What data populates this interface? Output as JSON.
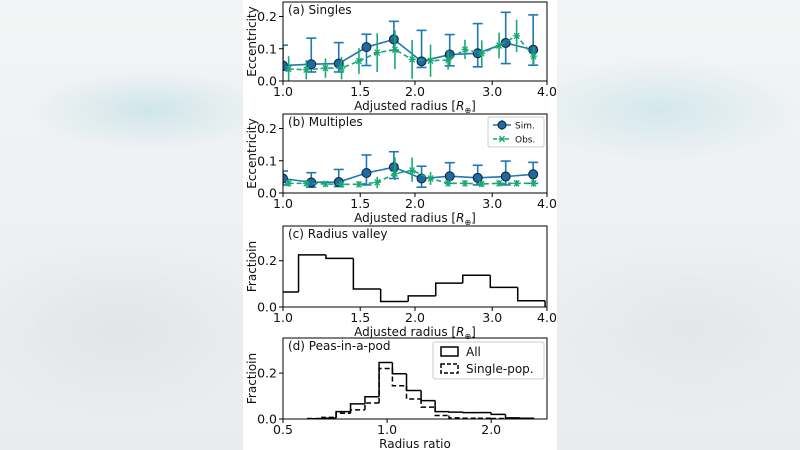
{
  "colors": {
    "sim": "#1f77b4",
    "sim_marker": "#1f6aa0",
    "obs": "#18a874",
    "hist": "#000000"
  },
  "chart_data": [
    {
      "type": "line",
      "title": "(a) Singles",
      "xlabel": {
        "prefix": "Adjusted radius [",
        "symbol": "R",
        "sub": "⊕",
        "suffix": "]"
      },
      "ylabel": "Eccentricity",
      "xscale": "log",
      "xlim": [
        1.0,
        4.0
      ],
      "ylim": [
        0,
        0.245
      ],
      "xticks": [
        1.0,
        1.5,
        2.0,
        3.0,
        4.0
      ],
      "xtick_labels": [
        "1.0",
        "1.5",
        "2.0",
        "3.0",
        "4.0"
      ],
      "yticks": [
        0.0,
        0.1,
        0.2
      ],
      "ytick_labels": [
        "0.0",
        "0.1",
        "0.2"
      ],
      "grid": false,
      "series": [
        {
          "key": "sim",
          "style": "solid-circle-errorbar",
          "x": [
            1.0,
            1.16,
            1.34,
            1.55,
            1.79,
            2.07,
            2.4,
            2.78,
            3.22,
            3.72
          ],
          "y": [
            0.048,
            0.052,
            0.054,
            0.105,
            0.129,
            0.061,
            0.082,
            0.086,
            0.118,
            0.097
          ],
          "y_low": [
            0.033,
            0.028,
            0.028,
            0.048,
            0.095,
            0.042,
            0.047,
            0.044,
            0.054,
            0.049
          ],
          "y_high": [
            0.111,
            0.133,
            0.119,
            0.145,
            0.185,
            0.157,
            0.144,
            0.178,
            0.213,
            0.205
          ]
        },
        {
          "key": "obs",
          "style": "dashed-star-errorbar",
          "x": [
            1.03,
            1.13,
            1.25,
            1.36,
            1.49,
            1.64,
            1.8,
            1.97,
            2.17,
            2.38,
            2.6,
            2.84,
            3.11,
            3.41,
            3.73
          ],
          "y": [
            0.037,
            0.035,
            0.04,
            0.04,
            0.062,
            0.088,
            0.097,
            0.067,
            0.063,
            0.065,
            0.098,
            0.086,
            0.11,
            0.14,
            0.077
          ],
          "y_low": [
            0.0,
            0.005,
            0.01,
            0.005,
            0.022,
            0.028,
            0.037,
            0.007,
            0.013,
            0.035,
            0.068,
            0.046,
            0.07,
            0.09,
            0.047
          ],
          "y_high": [
            0.077,
            0.065,
            0.07,
            0.075,
            0.102,
            0.148,
            0.157,
            0.127,
            0.113,
            0.095,
            0.128,
            0.126,
            0.15,
            0.19,
            0.107
          ]
        }
      ]
    },
    {
      "type": "line",
      "title": "(b) Multiples",
      "xlabel": {
        "prefix": "Adjusted radius [",
        "symbol": "R",
        "sub": "⊕",
        "suffix": "]"
      },
      "ylabel": "Eccentricity",
      "xscale": "log",
      "xlim": [
        1.0,
        4.0
      ],
      "ylim": [
        0,
        0.245
      ],
      "xticks": [
        1.0,
        1.5,
        2.0,
        3.0,
        4.0
      ],
      "xtick_labels": [
        "1.0",
        "1.5",
        "2.0",
        "3.0",
        "4.0"
      ],
      "yticks": [
        0.0,
        0.1,
        0.2
      ],
      "ytick_labels": [
        "0.0",
        "0.1",
        "0.2"
      ],
      "grid": false,
      "legend": "top-right",
      "series": [
        {
          "key": "sim",
          "name": "Sim.",
          "style": "solid-circle-errorbar",
          "x": [
            1.0,
            1.16,
            1.34,
            1.55,
            1.79,
            2.07,
            2.4,
            2.78,
            3.22,
            3.72
          ],
          "y": [
            0.045,
            0.033,
            0.034,
            0.062,
            0.08,
            0.045,
            0.052,
            0.047,
            0.051,
            0.058
          ],
          "y_low": [
            0.025,
            0.018,
            0.02,
            0.025,
            0.045,
            0.018,
            0.03,
            0.025,
            0.025,
            0.03
          ],
          "y_high": [
            0.068,
            0.063,
            0.073,
            0.118,
            0.128,
            0.083,
            0.094,
            0.086,
            0.099,
            0.095
          ]
        },
        {
          "key": "obs",
          "name": "Obs.",
          "style": "dashed-star-errorbar",
          "x": [
            1.03,
            1.13,
            1.25,
            1.36,
            1.49,
            1.64,
            1.8,
            1.97,
            2.17,
            2.38,
            2.6,
            2.84,
            3.11,
            3.41,
            3.73
          ],
          "y": [
            0.03,
            0.03,
            0.028,
            0.027,
            0.027,
            0.033,
            0.06,
            0.07,
            0.045,
            0.03,
            0.03,
            0.028,
            0.03,
            0.03,
            0.03
          ],
          "y_low": [
            0.02,
            0.02,
            0.018,
            0.017,
            0.017,
            0.015,
            0.04,
            0.035,
            0.025,
            0.02,
            0.02,
            0.018,
            0.02,
            0.02,
            0.02
          ],
          "y_high": [
            0.045,
            0.04,
            0.038,
            0.037,
            0.037,
            0.05,
            0.11,
            0.11,
            0.065,
            0.04,
            0.04,
            0.038,
            0.04,
            0.04,
            0.04
          ]
        }
      ]
    },
    {
      "type": "bar",
      "style": "step-histogram",
      "title": "(c) Radius valley",
      "xlabel": {
        "prefix": "Adjusted radius [",
        "symbol": "R",
        "sub": "⊕",
        "suffix": "]"
      },
      "ylabel": "Fractioin",
      "xscale": "log",
      "xlim": [
        1.0,
        4.0
      ],
      "ylim": [
        0,
        0.35
      ],
      "xticks": [
        1.0,
        1.5,
        2.0,
        3.0,
        4.0
      ],
      "xtick_labels": [
        "1.0",
        "1.5",
        "2.0",
        "3.0",
        "4.0"
      ],
      "yticks": [
        0.0,
        0.2
      ],
      "ytick_labels": [
        "0.0",
        "0.2"
      ],
      "grid": false,
      "series": [
        {
          "key": "hist",
          "style": "solid",
          "bin_edges": [
            0.94,
            1.085,
            1.253,
            1.447,
            1.67,
            1.93,
            2.23,
            2.57,
            2.97,
            3.43,
            3.96
          ],
          "values": [
            0.065,
            0.225,
            0.21,
            0.078,
            0.024,
            0.048,
            0.103,
            0.137,
            0.085,
            0.027
          ]
        }
      ]
    },
    {
      "type": "bar",
      "style": "step-histogram",
      "title": "(d) Peas-in-a-pod",
      "xlabel": {
        "prefix": "Radius ratio",
        "symbol": "",
        "sub": "",
        "suffix": ""
      },
      "ylabel": "Fractioin",
      "xscale": "log",
      "xlim": [
        0.5,
        2.9
      ],
      "ylim": [
        0,
        0.353
      ],
      "xticks": [
        0.5,
        1.0,
        2.0
      ],
      "xtick_labels": [
        "0.5",
        "1.0",
        "2.0"
      ],
      "yticks": [
        0.0,
        0.2
      ],
      "ytick_labels": [
        "0.0",
        "0.2"
      ],
      "grid": false,
      "legend": "top-right",
      "series": [
        {
          "key": "all",
          "name": "All",
          "style": "solid",
          "bin_edges": [
            0.59,
            0.648,
            0.712,
            0.784,
            0.863,
            0.948,
            1.036,
            1.138,
            1.254,
            1.377,
            1.51,
            1.66,
            1.83,
            2.0,
            2.2,
            2.42,
            2.66
          ],
          "values": [
            0.001,
            0.004,
            0.032,
            0.066,
            0.097,
            0.246,
            0.197,
            0.124,
            0.08,
            0.032,
            0.03,
            0.028,
            0.028,
            0.02,
            0.005,
            0.003
          ]
        },
        {
          "key": "single",
          "name": "Single-pop.",
          "style": "dashed",
          "bin_edges": [
            0.59,
            0.648,
            0.712,
            0.784,
            0.863,
            0.948,
            1.036,
            1.138,
            1.254,
            1.377,
            1.51,
            1.66,
            1.83,
            2.0,
            2.2,
            2.42,
            2.66
          ],
          "values": [
            0.002,
            0.007,
            0.025,
            0.04,
            0.07,
            0.22,
            0.145,
            0.087,
            0.052,
            0.015,
            0.005,
            0.003,
            0.003,
            0.002,
            0.001,
            0.0
          ]
        }
      ]
    }
  ]
}
